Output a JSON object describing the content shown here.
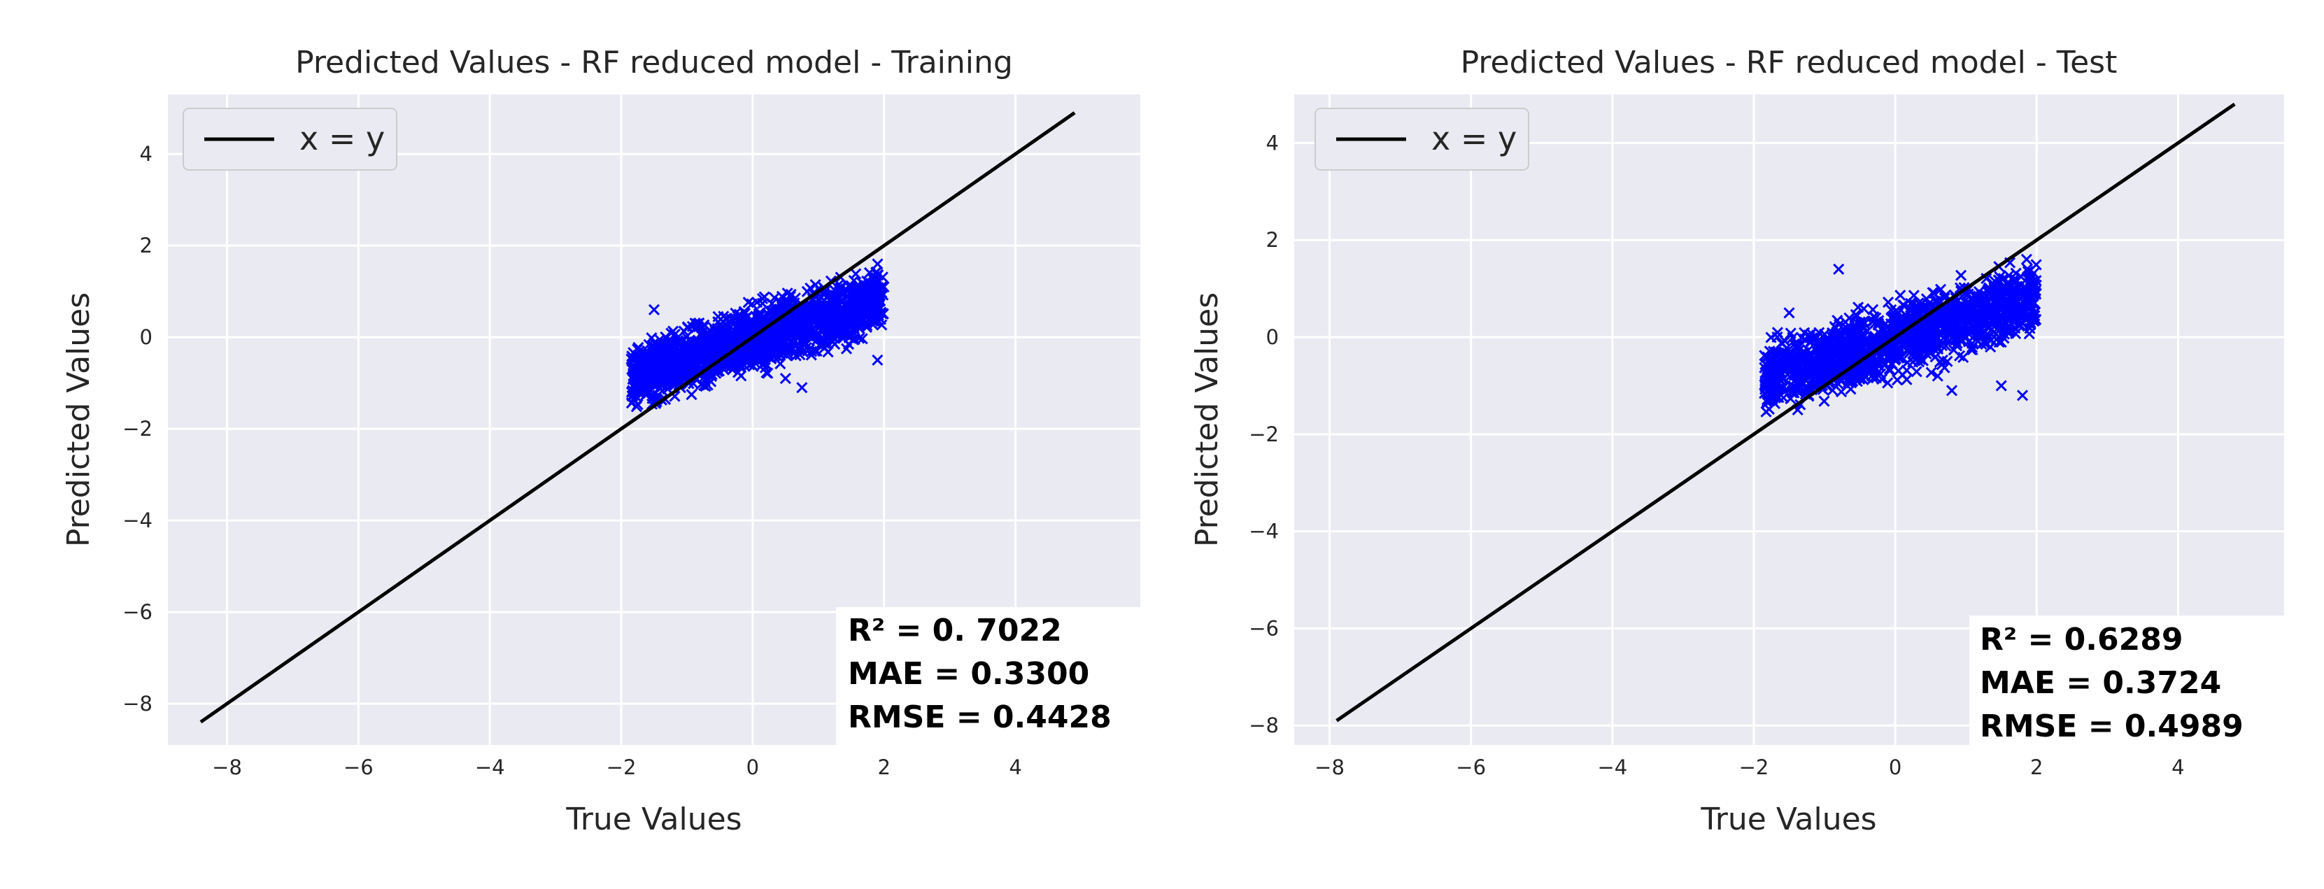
{
  "colors": {
    "plot_background": "#eaeaf2",
    "grid": "#ffffff",
    "points": "#0000ff",
    "identity_line": "#000000",
    "text": "#262626"
  },
  "chart_data": [
    {
      "type": "scatter",
      "title": "Predicted Values - RF reduced model - Training",
      "xlabel": "True Values",
      "ylabel": "Predicted Values",
      "xlim": [
        -8.9,
        5.9
      ],
      "ylim": [
        -8.9,
        5.3
      ],
      "xticks": [
        -8,
        -6,
        -4,
        -2,
        0,
        2,
        4
      ],
      "yticks": [
        -8,
        -6,
        -4,
        -2,
        0,
        2,
        4
      ],
      "grid": true,
      "legend": {
        "position": "top-left",
        "entries": [
          "x = y"
        ]
      },
      "identity_line": {
        "label": "x = y",
        "from": -8.4,
        "to": 4.9
      },
      "point_cloud": {
        "marker": "x",
        "x_range": [
          -1.85,
          2.0
        ],
        "description": "dense band of predictions; roughly pred ≈ 0.45 * true - 0.05 with spread ±0.75",
        "slope": 0.45,
        "intercept": -0.05,
        "spread": 0.75,
        "count": 1600,
        "outliers": [
          [
            -1.5,
            0.6
          ],
          [
            0.5,
            -0.9
          ],
          [
            0.75,
            -1.1
          ],
          [
            1.9,
            -0.5
          ]
        ]
      },
      "stats": {
        "r2": "R² = 0. 7022",
        "mae": "MAE = 0.3300",
        "rmse": "RMSE = 0.4428"
      }
    },
    {
      "type": "scatter",
      "title": "Predicted Values - RF reduced model - Test",
      "xlabel": "True Values",
      "ylabel": "Predicted Values",
      "xlim": [
        -8.5,
        5.5
      ],
      "ylim": [
        -8.4,
        5.0
      ],
      "xticks": [
        -8,
        -6,
        -4,
        -2,
        0,
        2,
        4
      ],
      "yticks": [
        -8,
        -6,
        -4,
        -2,
        0,
        2,
        4
      ],
      "grid": true,
      "legend": {
        "position": "top-left",
        "entries": [
          "x = y"
        ]
      },
      "identity_line": {
        "label": "x = y",
        "from": -7.9,
        "to": 4.8
      },
      "point_cloud": {
        "marker": "x",
        "x_range": [
          -1.85,
          2.0
        ],
        "description": "dense band of predictions; roughly pred ≈ 0.45 * true - 0.05 with spread ±0.8",
        "slope": 0.45,
        "intercept": -0.05,
        "spread": 0.8,
        "count": 1400,
        "outliers": [
          [
            -0.8,
            1.4
          ],
          [
            0.8,
            -1.1
          ],
          [
            1.5,
            -1.0
          ],
          [
            1.8,
            -1.2
          ],
          [
            -1.5,
            0.5
          ],
          [
            0.6,
            -0.8
          ]
        ]
      },
      "stats": {
        "r2": "R² = 0.6289",
        "mae": "MAE = 0.3724",
        "rmse": "RMSE = 0.4989"
      }
    }
  ]
}
